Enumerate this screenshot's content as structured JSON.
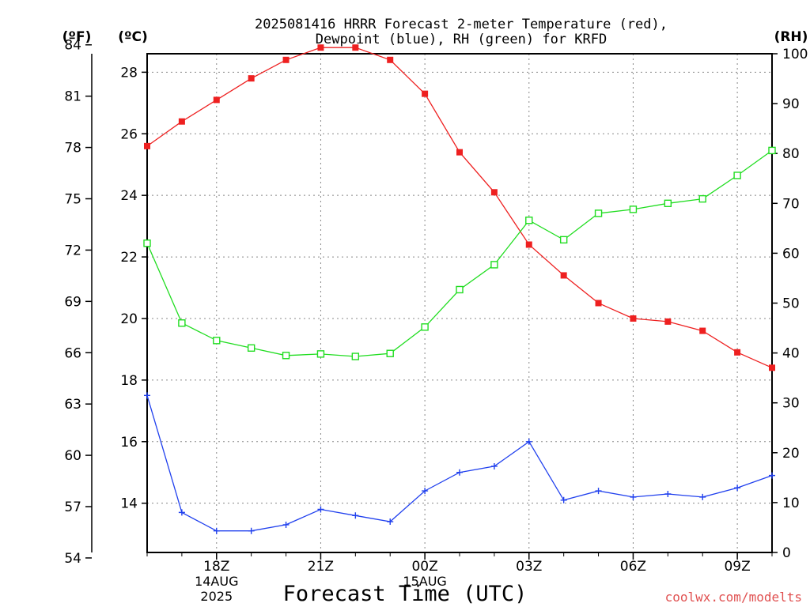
{
  "chart_data": {
    "type": "line",
    "title_line1": "2025081416 HRRR Forecast 2-meter Temperature (red),",
    "title_line2": "Dewpoint (blue), RH (green) for KRFD",
    "xlabel": "Forecast Time (UTC)",
    "watermark": "coolwx.com/modelts",
    "left_unit_f": "(ºF)",
    "left_unit_c": "(ºC)",
    "right_unit": "(RH)",
    "x_hours_from_16Z": [
      0,
      1,
      2,
      3,
      4,
      5,
      6,
      7,
      8,
      9,
      10,
      11,
      12,
      13,
      14,
      15,
      16,
      17,
      18
    ],
    "x_range": [
      0,
      18
    ],
    "celsius_range": [
      12.4,
      28.6
    ],
    "rh_range": [
      0,
      100
    ],
    "fahrenheit_ticks": [
      54,
      57,
      60,
      63,
      66,
      69,
      72,
      75,
      78,
      81,
      84
    ],
    "celsius_ticks": [
      14,
      16,
      18,
      20,
      22,
      24,
      26,
      28
    ],
    "rh_ticks": [
      0,
      10,
      20,
      30,
      40,
      50,
      60,
      70,
      80,
      90,
      100
    ],
    "x_ticks": [
      {
        "hour": 2,
        "label": "18Z",
        "sub1": "14AUG",
        "sub2": "2025"
      },
      {
        "hour": 5,
        "label": "21Z",
        "sub1": "",
        "sub2": ""
      },
      {
        "hour": 8,
        "label": "00Z",
        "sub1": "15AUG",
        "sub2": ""
      },
      {
        "hour": 11,
        "label": "03Z",
        "sub1": "",
        "sub2": ""
      },
      {
        "hour": 14,
        "label": "06Z",
        "sub1": "",
        "sub2": ""
      },
      {
        "hour": 17,
        "label": "09Z",
        "sub1": "",
        "sub2": ""
      }
    ],
    "series": [
      {
        "name": "Temperature",
        "axis": "celsius",
        "color": "#ee2020",
        "marker": "filled-square",
        "values": [
          25.6,
          26.4,
          27.1,
          27.8,
          28.4,
          28.8,
          28.8,
          28.4,
          27.3,
          25.4,
          24.1,
          22.4,
          21.4,
          20.5,
          20.0,
          19.9,
          19.6,
          18.9,
          18.4
        ]
      },
      {
        "name": "Dewpoint",
        "axis": "celsius",
        "color": "#2040ee",
        "marker": "plus",
        "values": [
          17.5,
          13.7,
          13.1,
          13.1,
          13.3,
          13.8,
          13.6,
          13.4,
          14.4,
          15.0,
          15.2,
          16.0,
          14.1,
          14.4,
          14.2,
          14.3,
          14.2,
          14.5,
          14.9
        ]
      },
      {
        "name": "RH",
        "axis": "rh",
        "color": "#20dd20",
        "marker": "open-square",
        "values": [
          62,
          46,
          42.5,
          41,
          39.5,
          39.8,
          39.3,
          39.9,
          45.2,
          52.7,
          57.7,
          66.6,
          62.7,
          68,
          68.8,
          70,
          70.9,
          75.6,
          80.6
        ]
      }
    ],
    "grid": true
  }
}
